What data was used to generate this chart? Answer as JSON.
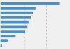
{
  "values": [
    3100,
    1850,
    1700,
    1580,
    1480,
    1380,
    1300,
    780,
    380,
    90
  ],
  "bar_color": "#4a90c4",
  "background_color": "#f0f0f0",
  "grid_color": "#bbbbbb",
  "xmax": 3600,
  "grid_vals": [
    1200,
    2400,
    3600
  ],
  "figsize": [
    1.0,
    0.71
  ],
  "dpi": 100,
  "bar_height": 0.55
}
